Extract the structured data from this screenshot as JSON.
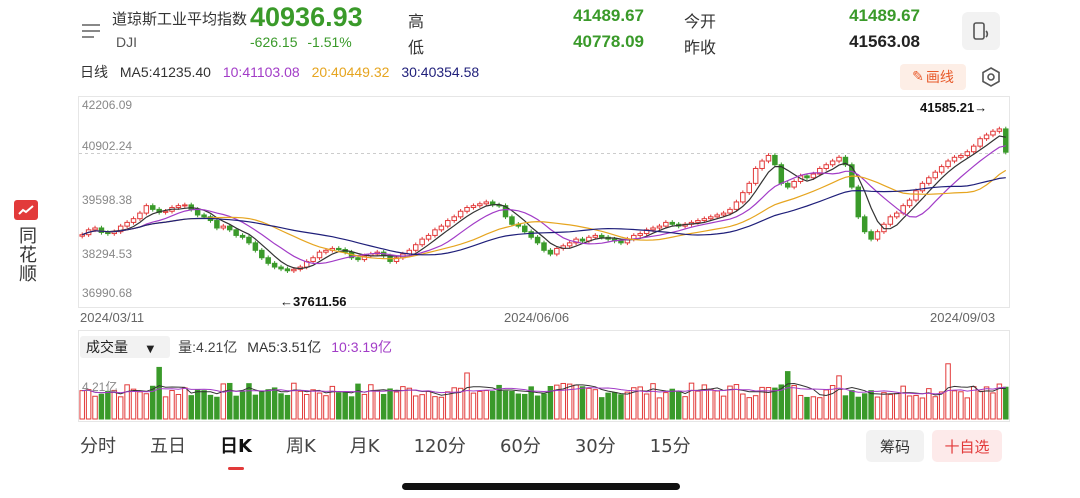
{
  "brand": {
    "name": "同花顺"
  },
  "header": {
    "title": "道琼斯工业平均指数",
    "code": "DJI",
    "price": "40936.93",
    "change": "-626.15",
    "change_pct": "-1.51%",
    "high_label": "高",
    "high_value": "41489.67",
    "low_label": "低",
    "low_value": "40778.09",
    "open_label": "今开",
    "open_value": "41489.67",
    "prev_label": "昨收",
    "prev_value": "41563.08",
    "colors": {
      "down": "#3a9a2a",
      "up": "#e23a3a"
    }
  },
  "indicators": {
    "period_label": "日线",
    "ma5": "MA5:41235.40",
    "ma10": "10:41103.08",
    "ma20": "20:40449.32",
    "ma30": "30:40354.58",
    "colors": {
      "ma5": "#333333",
      "ma10": "#a23cc7",
      "ma20": "#e6a520",
      "ma30": "#1f1f7a"
    },
    "draw_label": "画线"
  },
  "chart": {
    "y_ticks": [
      "42206.09",
      "40902.24",
      "39598.38",
      "38294.53",
      "36990.68"
    ],
    "high_marker": "41585.21→",
    "low_marker": "←37611.56",
    "dates": [
      "2024/03/11",
      "2024/06/06",
      "2024/09/03"
    ]
  },
  "volume": {
    "selector": "成交量",
    "vol": "量:4.21亿",
    "ma5": "MA5:3.51亿",
    "ma10": "10:3.19亿",
    "tick": "4.21亿"
  },
  "tabs": [
    "分时",
    "五日",
    "日K",
    "周K",
    "月K",
    "120分",
    "60分",
    "30分",
    "15分"
  ],
  "active_tab": "日K",
  "buttons": {
    "chip": "筹码",
    "add_watch": "十自选"
  },
  "chart_data": {
    "type": "candlestick",
    "y_range": [
      36990.68,
      42206.09
    ],
    "close": [
      38720,
      38850,
      38900,
      38780,
      38750,
      38800,
      38950,
      39050,
      39150,
      39300,
      39500,
      39400,
      39320,
      39350,
      39450,
      39500,
      39520,
      39400,
      39250,
      39200,
      39100,
      38900,
      38950,
      38850,
      38700,
      38650,
      38500,
      38300,
      38100,
      37950,
      37850,
      37800,
      37750,
      37790,
      37850,
      38000,
      38100,
      38250,
      38300,
      38350,
      38320,
      38250,
      38100,
      38050,
      38150,
      38200,
      38250,
      38150,
      38000,
      38100,
      38200,
      38300,
      38450,
      38600,
      38700,
      38850,
      38950,
      39100,
      39200,
      39350,
      39450,
      39500,
      39550,
      39600,
      39520,
      39500,
      39200,
      39000,
      38950,
      38800,
      38650,
      38500,
      38300,
      38200,
      38350,
      38420,
      38500,
      38600,
      38550,
      38650,
      38700,
      38650,
      38600,
      38550,
      38500,
      38600,
      38700,
      38750,
      38850,
      38900,
      38950,
      39050,
      39000,
      38950,
      39000,
      39050,
      39100,
      39150,
      39200,
      39250,
      39300,
      39400,
      39600,
      39850,
      40100,
      40500,
      40700,
      40850,
      40600,
      40100,
      40000,
      40150,
      40300,
      40250,
      40350,
      40500,
      40600,
      40700,
      40800,
      40600,
      40000,
      39200,
      38800,
      38600,
      38800,
      39000,
      39200,
      39300,
      39500,
      39650,
      39900,
      40100,
      40250,
      40400,
      40550,
      40700,
      40800,
      40850,
      40950,
      41100,
      41300,
      41400,
      41500,
      41563.08,
      40936.93
    ]
  }
}
